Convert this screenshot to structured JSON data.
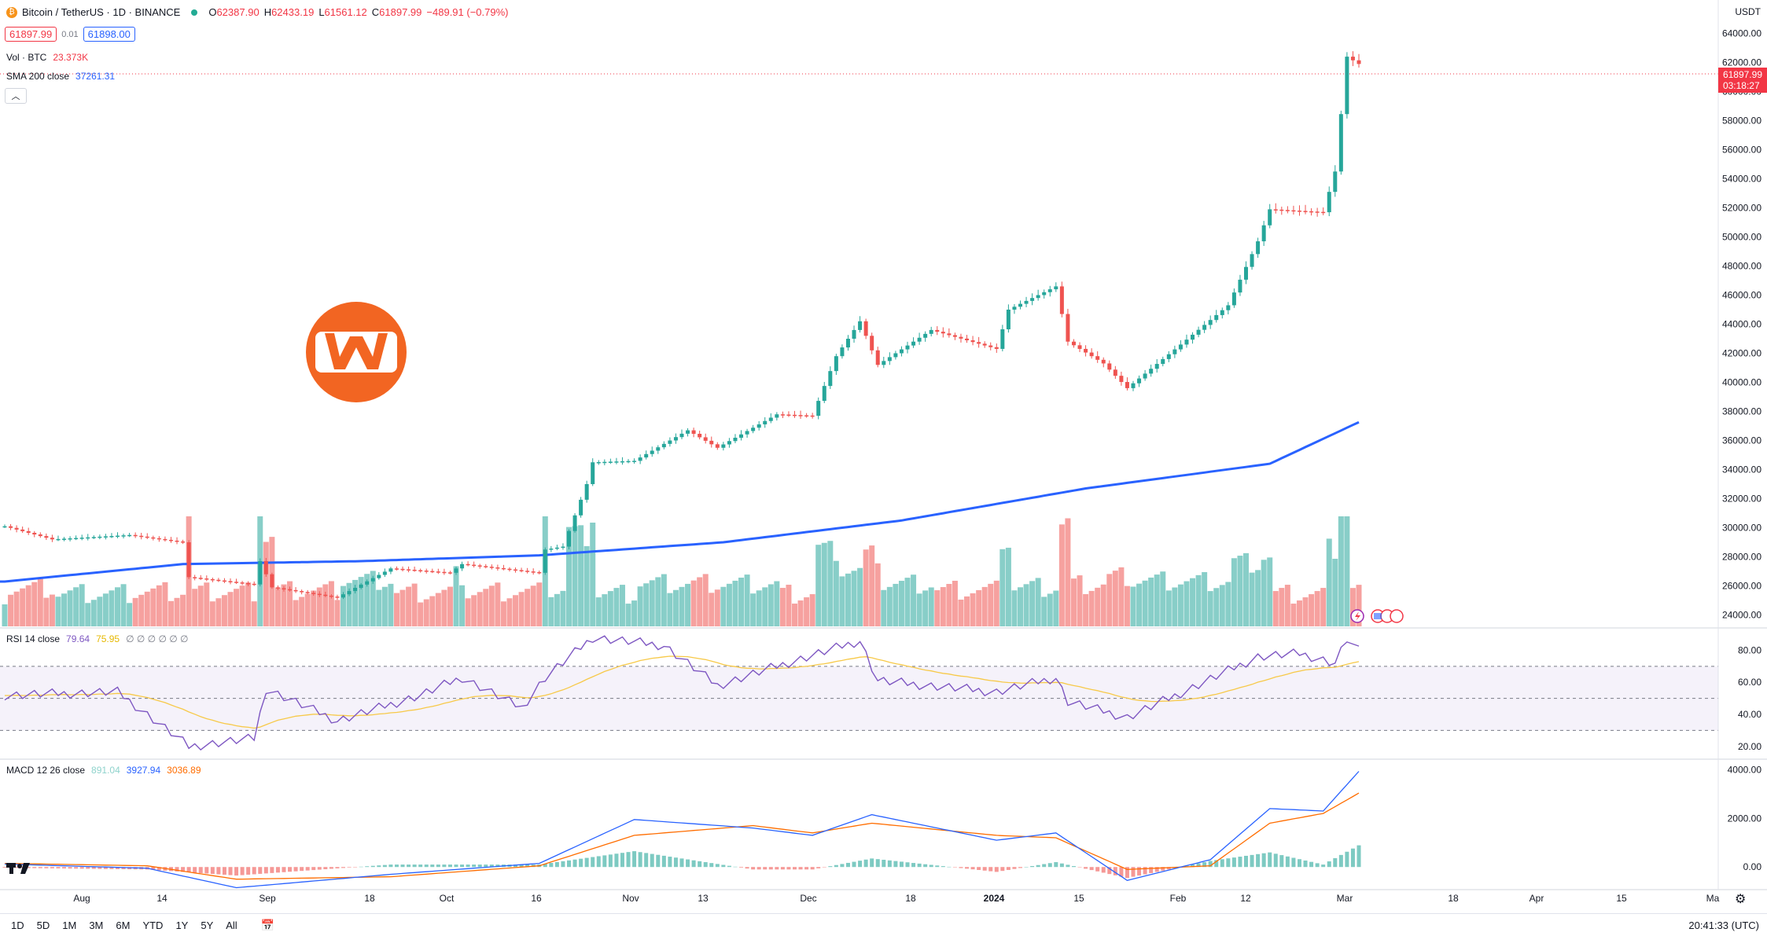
{
  "header": {
    "symbol": "Bitcoin / TetherUS · 1D · BINANCE",
    "o_label": "O",
    "o_val": "62387.90",
    "h_label": "H",
    "h_val": "62433.19",
    "l_label": "L",
    "l_val": "61561.12",
    "c_label": "C",
    "c_val": "61897.99",
    "change": "−489.91 (−0.79%)",
    "sell": "61897.99",
    "spread": "0.01",
    "buy": "61898.00"
  },
  "indicators": {
    "vol_label": "Vol · BTC",
    "vol_value": "23.373K",
    "sma_label": "SMA 200 close",
    "sma_value": "37261.31",
    "rsi_label": "RSI 14 close",
    "rsi_value": "79.64",
    "rsi_ma": "75.95",
    "rsi_extra": "∅ ∅ ∅ ∅ ∅ ∅",
    "macd_label": "MACD 12 26 close",
    "macd_hist": "891.04",
    "macd_line": "3927.94",
    "macd_signal": "3036.89"
  },
  "axis": {
    "unit": "USDT",
    "price_ticks": [
      "64000.00",
      "62000.00",
      "60000.00",
      "58000.00",
      "56000.00",
      "54000.00",
      "52000.00",
      "50000.00",
      "48000.00",
      "46000.00",
      "44000.00",
      "42000.00",
      "40000.00",
      "38000.00",
      "36000.00",
      "34000.00",
      "32000.00",
      "30000.00",
      "28000.00",
      "26000.00",
      "24000.00"
    ],
    "rsi_ticks": [
      "80.00",
      "60.00",
      "40.00",
      "20.00"
    ],
    "macd_ticks": [
      "4000.00",
      "2000.00",
      "0.00"
    ],
    "time_labels": [
      "Aug",
      "14",
      "Sep",
      "18",
      "Oct",
      "16",
      "Nov",
      "13",
      "Dec",
      "18",
      "2024",
      "15",
      "Feb",
      "12",
      "Mar",
      "18",
      "Apr",
      "15",
      "Ma"
    ]
  },
  "price_tag": {
    "price": "61897.99",
    "countdown": "03:18:27"
  },
  "bottom": {
    "ranges": [
      "1D",
      "5D",
      "1M",
      "3M",
      "6M",
      "YTD",
      "1Y",
      "5Y",
      "All"
    ],
    "clock": "20:41:33 (UTC)"
  },
  "colors": {
    "up": "#26a69a",
    "down": "#ef5350",
    "sma": "#2962ff",
    "rsi": "#7e57c2",
    "rsi_ma": "#f7c948",
    "macd": "#2962ff",
    "signal": "#ff6d00",
    "logo": "#f26522"
  },
  "icons": [
    "tradingview-logo-icon",
    "calendar-icon",
    "settings-gear-icon",
    "lightning-icon",
    "flag-icon",
    "brand-logo-icon"
  ],
  "chart_data": {
    "type": "candlestick",
    "x_range": [
      "2023-07-17",
      "2024-03-01"
    ],
    "ylim": [
      23000,
      65000
    ],
    "grid": false,
    "anchors": [
      {
        "date": "2023-07-17",
        "price": 30100
      },
      {
        "date": "2023-07-25",
        "price": 29200
      },
      {
        "date": "2023-08-07",
        "price": 29500
      },
      {
        "date": "2023-08-16",
        "price": 29000
      },
      {
        "date": "2023-08-17",
        "price": 26600
      },
      {
        "date": "2023-08-28",
        "price": 26100
      },
      {
        "date": "2023-08-29",
        "price": 27700
      },
      {
        "date": "2023-08-31",
        "price": 25900
      },
      {
        "date": "2023-09-11",
        "price": 25200
      },
      {
        "date": "2023-09-20",
        "price": 27200
      },
      {
        "date": "2023-09-30",
        "price": 26900
      },
      {
        "date": "2023-10-02",
        "price": 27500
      },
      {
        "date": "2023-10-15",
        "price": 26900
      },
      {
        "date": "2023-10-16",
        "price": 28500
      },
      {
        "date": "2023-10-19",
        "price": 28700
      },
      {
        "date": "2023-10-23",
        "price": 33000
      },
      {
        "date": "2023-10-24",
        "price": 34500
      },
      {
        "date": "2023-10-31",
        "price": 34600
      },
      {
        "date": "2023-11-09",
        "price": 36700
      },
      {
        "date": "2023-11-14",
        "price": 35500
      },
      {
        "date": "2023-11-24",
        "price": 37800
      },
      {
        "date": "2023-11-30",
        "price": 37700
      },
      {
        "date": "2023-12-04",
        "price": 41800
      },
      {
        "date": "2023-12-08",
        "price": 44200
      },
      {
        "date": "2023-12-11",
        "price": 41200
      },
      {
        "date": "2023-12-20",
        "price": 43600
      },
      {
        "date": "2023-12-31",
        "price": 42300
      },
      {
        "date": "2024-01-02",
        "price": 45000
      },
      {
        "date": "2024-01-10",
        "price": 46600
      },
      {
        "date": "2024-01-12",
        "price": 42800
      },
      {
        "date": "2024-01-18",
        "price": 41300
      },
      {
        "date": "2024-01-22",
        "price": 39600
      },
      {
        "date": "2024-01-31",
        "price": 42600
      },
      {
        "date": "2024-02-08",
        "price": 45300
      },
      {
        "date": "2024-02-13",
        "price": 49700
      },
      {
        "date": "2024-02-15",
        "price": 51900
      },
      {
        "date": "2024-02-24",
        "price": 51700
      },
      {
        "date": "2024-02-26",
        "price": 54500
      },
      {
        "date": "2024-02-28",
        "price": 62400
      },
      {
        "date": "2024-03-01",
        "price": 61898
      }
    ],
    "sma200_anchors": [
      {
        "date": "2023-07-17",
        "value": 26300
      },
      {
        "date": "2023-08-16",
        "value": 27500
      },
      {
        "date": "2023-09-15",
        "value": 27700
      },
      {
        "date": "2023-10-15",
        "value": 28100
      },
      {
        "date": "2023-11-15",
        "value": 29000
      },
      {
        "date": "2023-12-15",
        "value": 30500
      },
      {
        "date": "2024-01-15",
        "value": 32700
      },
      {
        "date": "2024-02-15",
        "value": 34400
      },
      {
        "date": "2024-03-01",
        "value": 37261
      }
    ],
    "rsi_ylim": [
      15,
      92
    ],
    "rsi_bands": [
      30,
      50,
      70
    ],
    "rsi_anchors": [
      {
        "date": "2023-07-17",
        "value": 52
      },
      {
        "date": "2023-08-05",
        "value": 54
      },
      {
        "date": "2023-08-17",
        "value": 20
      },
      {
        "date": "2023-08-28",
        "value": 25
      },
      {
        "date": "2023-08-30",
        "value": 56
      },
      {
        "date": "2023-09-11",
        "value": 36
      },
      {
        "date": "2023-09-25",
        "value": 52
      },
      {
        "date": "2023-10-02",
        "value": 63
      },
      {
        "date": "2023-10-12",
        "value": 44
      },
      {
        "date": "2023-10-16",
        "value": 63
      },
      {
        "date": "2023-10-24",
        "value": 88
      },
      {
        "date": "2023-11-05",
        "value": 83
      },
      {
        "date": "2023-11-14",
        "value": 58
      },
      {
        "date": "2023-11-24",
        "value": 70
      },
      {
        "date": "2023-12-01",
        "value": 78
      },
      {
        "date": "2023-12-08",
        "value": 86
      },
      {
        "date": "2023-12-11",
        "value": 61
      },
      {
        "date": "2023-12-31",
        "value": 54
      },
      {
        "date": "2024-01-10",
        "value": 63
      },
      {
        "date": "2024-01-12",
        "value": 48
      },
      {
        "date": "2024-01-22",
        "value": 38
      },
      {
        "date": "2024-02-01",
        "value": 55
      },
      {
        "date": "2024-02-13",
        "value": 76
      },
      {
        "date": "2024-02-20",
        "value": 78
      },
      {
        "date": "2024-02-26",
        "value": 72
      },
      {
        "date": "2024-02-28",
        "value": 87
      },
      {
        "date": "2024-03-01",
        "value": 79.64
      }
    ],
    "macd_ylim": [
      -800,
      4300
    ],
    "macd_anchors": [
      {
        "date": "2023-07-17",
        "macd": 120,
        "signal": 150
      },
      {
        "date": "2023-08-10",
        "macd": -50,
        "signal": 50
      },
      {
        "date": "2023-08-25",
        "macd": -850,
        "signal": -500
      },
      {
        "date": "2023-09-20",
        "macd": -300,
        "signal": -400
      },
      {
        "date": "2023-10-15",
        "macd": 150,
        "signal": 50
      },
      {
        "date": "2023-10-31",
        "macd": 1950,
        "signal": 1300
      },
      {
        "date": "2023-11-20",
        "macd": 1600,
        "signal": 1700
      },
      {
        "date": "2023-11-30",
        "macd": 1300,
        "signal": 1400
      },
      {
        "date": "2023-12-10",
        "macd": 2150,
        "signal": 1800
      },
      {
        "date": "2023-12-31",
        "macd": 1100,
        "signal": 1300
      },
      {
        "date": "2024-01-10",
        "macd": 1400,
        "signal": 1200
      },
      {
        "date": "2024-01-22",
        "macd": -550,
        "signal": -100
      },
      {
        "date": "2024-02-05",
        "macd": 300,
        "signal": 50
      },
      {
        "date": "2024-02-15",
        "macd": 2400,
        "signal": 1800
      },
      {
        "date": "2024-02-24",
        "macd": 2300,
        "signal": 2200
      },
      {
        "date": "2024-03-01",
        "macd": 3927.94,
        "signal": 3036.89
      }
    ]
  }
}
